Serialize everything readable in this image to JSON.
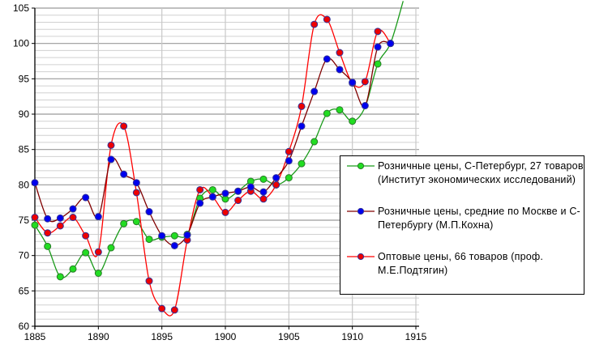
{
  "chart_data": {
    "type": "line",
    "title": "",
    "xlabel": "",
    "ylabel": "",
    "xlim": [
      1885,
      1915
    ],
    "ylim": [
      60,
      105
    ],
    "x_ticks": [
      "1885",
      "1890",
      "1895",
      "1900",
      "1905",
      "1910",
      "1915"
    ],
    "y_ticks": [
      "60",
      "65",
      "70",
      "75",
      "80",
      "85",
      "90",
      "95",
      "100",
      "105"
    ],
    "grid": true,
    "legend_position": "right",
    "x": [
      1885,
      1886,
      1887,
      1888,
      1889,
      1890,
      1891,
      1892,
      1893,
      1894,
      1895,
      1896,
      1897,
      1898,
      1899,
      1900,
      1901,
      1902,
      1903,
      1904,
      1905,
      1906,
      1907,
      1908,
      1909,
      1910,
      1911,
      1912,
      1913
    ],
    "series": [
      {
        "name": "Розничные цены, С-Петербург, 27 товаров (Институт экономических исследований)",
        "line_color": "#1a9a1a",
        "marker_fill": "#22dd22",
        "marker_edge": "#2a7a2a",
        "values": [
          74.3,
          71.3,
          67.0,
          68.1,
          70.4,
          67.5,
          71.1,
          74.5,
          74.8,
          72.3,
          72.6,
          72.8,
          73.0,
          78.1,
          79.3,
          78.0,
          79.1,
          80.5,
          80.8,
          80.0,
          81.0,
          83.0,
          86.1,
          90.1,
          90.6,
          89.0,
          null,
          97.1,
          100.0
        ],
        "unmarked_line_points": [
          [
            1911,
            91.0
          ],
          [
            1914,
            106.0
          ]
        ]
      },
      {
        "name": "Розничные цены, средние по Москве и С-Петербургу (М.П.Кохна)",
        "line_color": "#800000",
        "marker_fill": "#0000ee",
        "marker_edge": "#333399",
        "values": [
          80.3,
          75.2,
          75.3,
          76.6,
          78.2,
          75.5,
          83.6,
          81.5,
          80.3,
          76.2,
          72.8,
          71.4,
          72.9,
          77.4,
          78.3,
          78.8,
          79.1,
          79.7,
          79.0,
          81.0,
          83.4,
          88.3,
          93.2,
          97.8,
          96.3,
          94.5,
          91.2,
          99.5,
          100.0
        ]
      },
      {
        "name": "Оптовые цены, 66 товаров (проф. М.Е.Подтягин)",
        "line_color": "#ff0000",
        "marker_fill": "#ee0000",
        "marker_edge": "#333399",
        "values": [
          75.4,
          73.2,
          74.2,
          75.4,
          72.8,
          70.5,
          85.6,
          88.3,
          78.9,
          66.4,
          62.5,
          62.3,
          72.2,
          79.3,
          78.3,
          76.1,
          77.8,
          79.1,
          78.0,
          80.0,
          84.7,
          91.1,
          102.7,
          103.4,
          98.7,
          94.4,
          94.6,
          101.7,
          100.0
        ]
      }
    ]
  },
  "legend": {
    "items": [
      "Розничные цены, С-Петербург, 27 товаров (Институт экономических исследований)",
      "Розничные цены, средние по Москве и С-Петербургу (М.П.Кохна)",
      "Оптовые цены, 66 товаров (проф. М.Е.Подтягин)"
    ]
  }
}
